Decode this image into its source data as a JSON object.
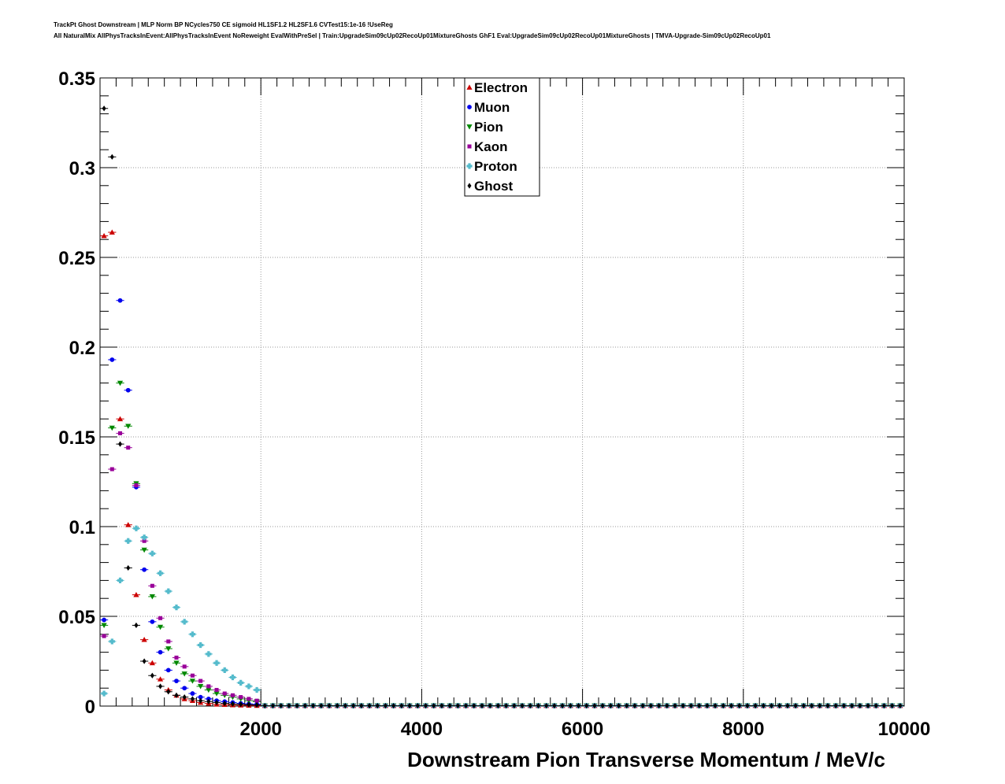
{
  "header": {
    "line1": "TrackPt Ghost Downstream | MLP Norm BP NCycles750 CE sigmoid HL1SF1.2 HL2SF1.6 CVTest15:1e-16 !UseReg",
    "line2": "All NaturalMix AllPhysTracksInEvent:AllPhysTracksInEvent NoReweight EvalWithPreSel | Train:UpgradeSim09cUp02RecoUp01MixtureGhosts GhF1 Eval:UpgradeSim09cUp02RecoUp01MixtureGhosts | TMVA-Upgrade-Sim09cUp02RecoUp01"
  },
  "chart_data": {
    "type": "scatter",
    "title": "",
    "xlabel": "Downstream Pion Transverse Momentum / MeV/c",
    "ylabel": "",
    "xlim": [
      0,
      10000
    ],
    "ylim": [
      0,
      0.35
    ],
    "x_ticks": [
      {
        "value": 2000,
        "label": "2000"
      },
      {
        "value": 4000,
        "label": "4000"
      },
      {
        "value": 6000,
        "label": "6000"
      },
      {
        "value": 8000,
        "label": "8000"
      },
      {
        "value": 10000,
        "label": "10000"
      }
    ],
    "y_ticks": [
      {
        "value": 0,
        "label": "0"
      },
      {
        "value": 0.05,
        "label": "0.05"
      },
      {
        "value": 0.1,
        "label": "0.1"
      },
      {
        "value": 0.15,
        "label": "0.15"
      },
      {
        "value": 0.2,
        "label": "0.2"
      },
      {
        "value": 0.25,
        "label": "0.25"
      },
      {
        "value": 0.3,
        "label": "0.3"
      },
      {
        "value": 0.35,
        "label": "0.35"
      }
    ],
    "grid": true,
    "legend_position": "top-center",
    "bin_width": 100,
    "series": [
      {
        "name": "Electron",
        "color": "#cc0000",
        "marker": "triangle-up",
        "values": [
          0.262,
          0.264,
          0.16,
          0.101,
          0.062,
          0.037,
          0.024,
          0.015,
          0.009,
          0.006,
          0.004,
          0.003,
          0.002,
          0.0015,
          0.001,
          0.0008,
          0.0006,
          0.0005,
          0.0004,
          0.0003
        ]
      },
      {
        "name": "Muon",
        "color": "#0000ee",
        "marker": "circle",
        "values": [
          0.048,
          0.193,
          0.226,
          0.176,
          0.122,
          0.076,
          0.047,
          0.03,
          0.02,
          0.014,
          0.01,
          0.007,
          0.005,
          0.004,
          0.003,
          0.0025,
          0.002,
          0.0015,
          0.0012,
          0.001
        ]
      },
      {
        "name": "Pion",
        "color": "#008800",
        "marker": "triangle-down",
        "values": [
          0.045,
          0.155,
          0.18,
          0.156,
          0.124,
          0.087,
          0.061,
          0.044,
          0.032,
          0.024,
          0.018,
          0.014,
          0.011,
          0.009,
          0.007,
          0.006,
          0.005,
          0.004,
          0.003,
          0.0025
        ]
      },
      {
        "name": "Kaon",
        "color": "#990099",
        "marker": "square",
        "values": [
          0.039,
          0.132,
          0.152,
          0.144,
          0.123,
          0.092,
          0.067,
          0.049,
          0.036,
          0.027,
          0.022,
          0.017,
          0.014,
          0.011,
          0.009,
          0.007,
          0.006,
          0.005,
          0.004,
          0.003
        ]
      },
      {
        "name": "Proton",
        "color": "#55bbcc",
        "marker": "cross",
        "values": [
          0.007,
          0.036,
          0.07,
          0.092,
          0.099,
          0.094,
          0.085,
          0.074,
          0.064,
          0.055,
          0.047,
          0.04,
          0.034,
          0.029,
          0.024,
          0.02,
          0.016,
          0.013,
          0.011,
          0.009
        ]
      },
      {
        "name": "Ghost",
        "color": "#000000",
        "marker": "diamond",
        "values": [
          0.333,
          0.306,
          0.146,
          0.077,
          0.045,
          0.025,
          0.017,
          0.011,
          0.008,
          0.006,
          0.005,
          0.004,
          0.003,
          0.0025,
          0.002,
          0.0015,
          0.0012,
          0.001,
          0.0008,
          0.0006
        ]
      }
    ]
  }
}
